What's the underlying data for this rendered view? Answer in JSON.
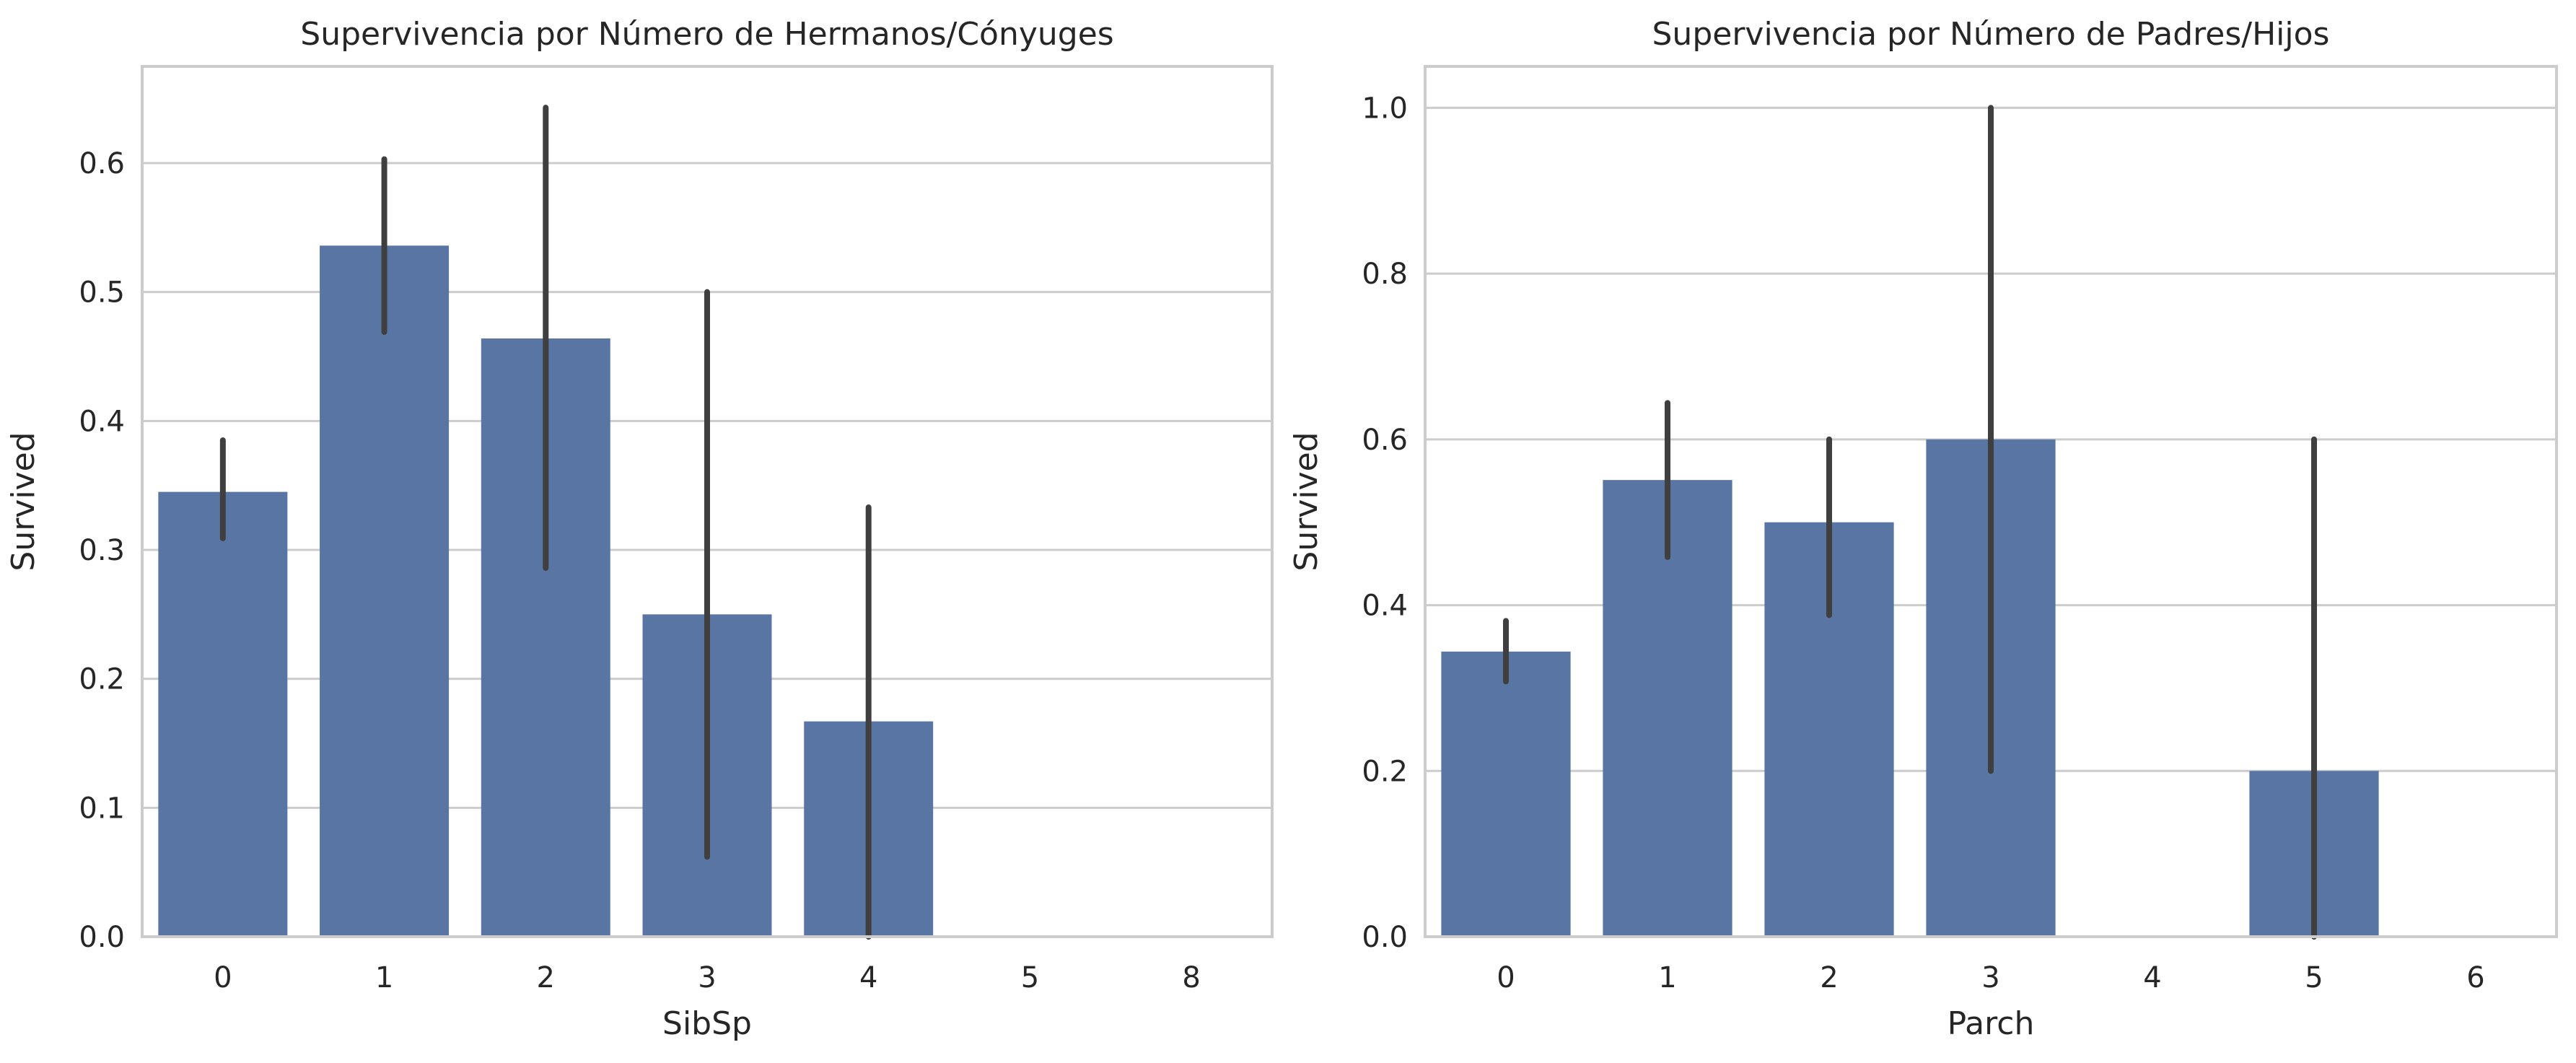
{
  "style": {
    "bar_color": "#5875a4",
    "errorbar_color": "#3f3f3f",
    "grid_color": "#cccccc",
    "spine_color": "#cccccc",
    "background": "#ffffff"
  },
  "chart_data": [
    {
      "type": "bar",
      "title": "Supervivencia por Número de Hermanos/Cónyuges",
      "xlabel": "SibSp",
      "ylabel": "Survived",
      "categories": [
        "0",
        "1",
        "2",
        "3",
        "4",
        "5",
        "8"
      ],
      "values": [
        0.345,
        0.536,
        0.464,
        0.25,
        0.167,
        0.0,
        0.0
      ],
      "error_low": [
        0.309,
        0.469,
        0.286,
        0.062,
        0.0,
        0.0,
        0.0
      ],
      "error_high": [
        0.385,
        0.603,
        0.643,
        0.5,
        0.333,
        0.0,
        0.0
      ],
      "ylim": [
        0,
        0.675
      ],
      "yticks": [
        0.0,
        0.1,
        0.2,
        0.3,
        0.4,
        0.5,
        0.6
      ],
      "ytick_labels": [
        "0.0",
        "0.1",
        "0.2",
        "0.3",
        "0.4",
        "0.5",
        "0.6"
      ],
      "grid": "horizontal"
    },
    {
      "type": "bar",
      "title": "Supervivencia por Número de Padres/Hijos",
      "xlabel": "Parch",
      "ylabel": "Survived",
      "categories": [
        "0",
        "1",
        "2",
        "3",
        "4",
        "5",
        "6"
      ],
      "values": [
        0.344,
        0.551,
        0.5,
        0.6,
        0.0,
        0.2,
        0.0
      ],
      "error_low": [
        0.308,
        0.458,
        0.388,
        0.2,
        0.0,
        0.0,
        0.0
      ],
      "error_high": [
        0.381,
        0.644,
        0.6,
        1.0,
        0.0,
        0.6,
        0.0
      ],
      "ylim": [
        0,
        1.05
      ],
      "yticks": [
        0.0,
        0.2,
        0.4,
        0.6,
        0.8,
        1.0
      ],
      "ytick_labels": [
        "0.0",
        "0.2",
        "0.4",
        "0.6",
        "0.8",
        "1.0"
      ],
      "grid": "horizontal"
    }
  ]
}
